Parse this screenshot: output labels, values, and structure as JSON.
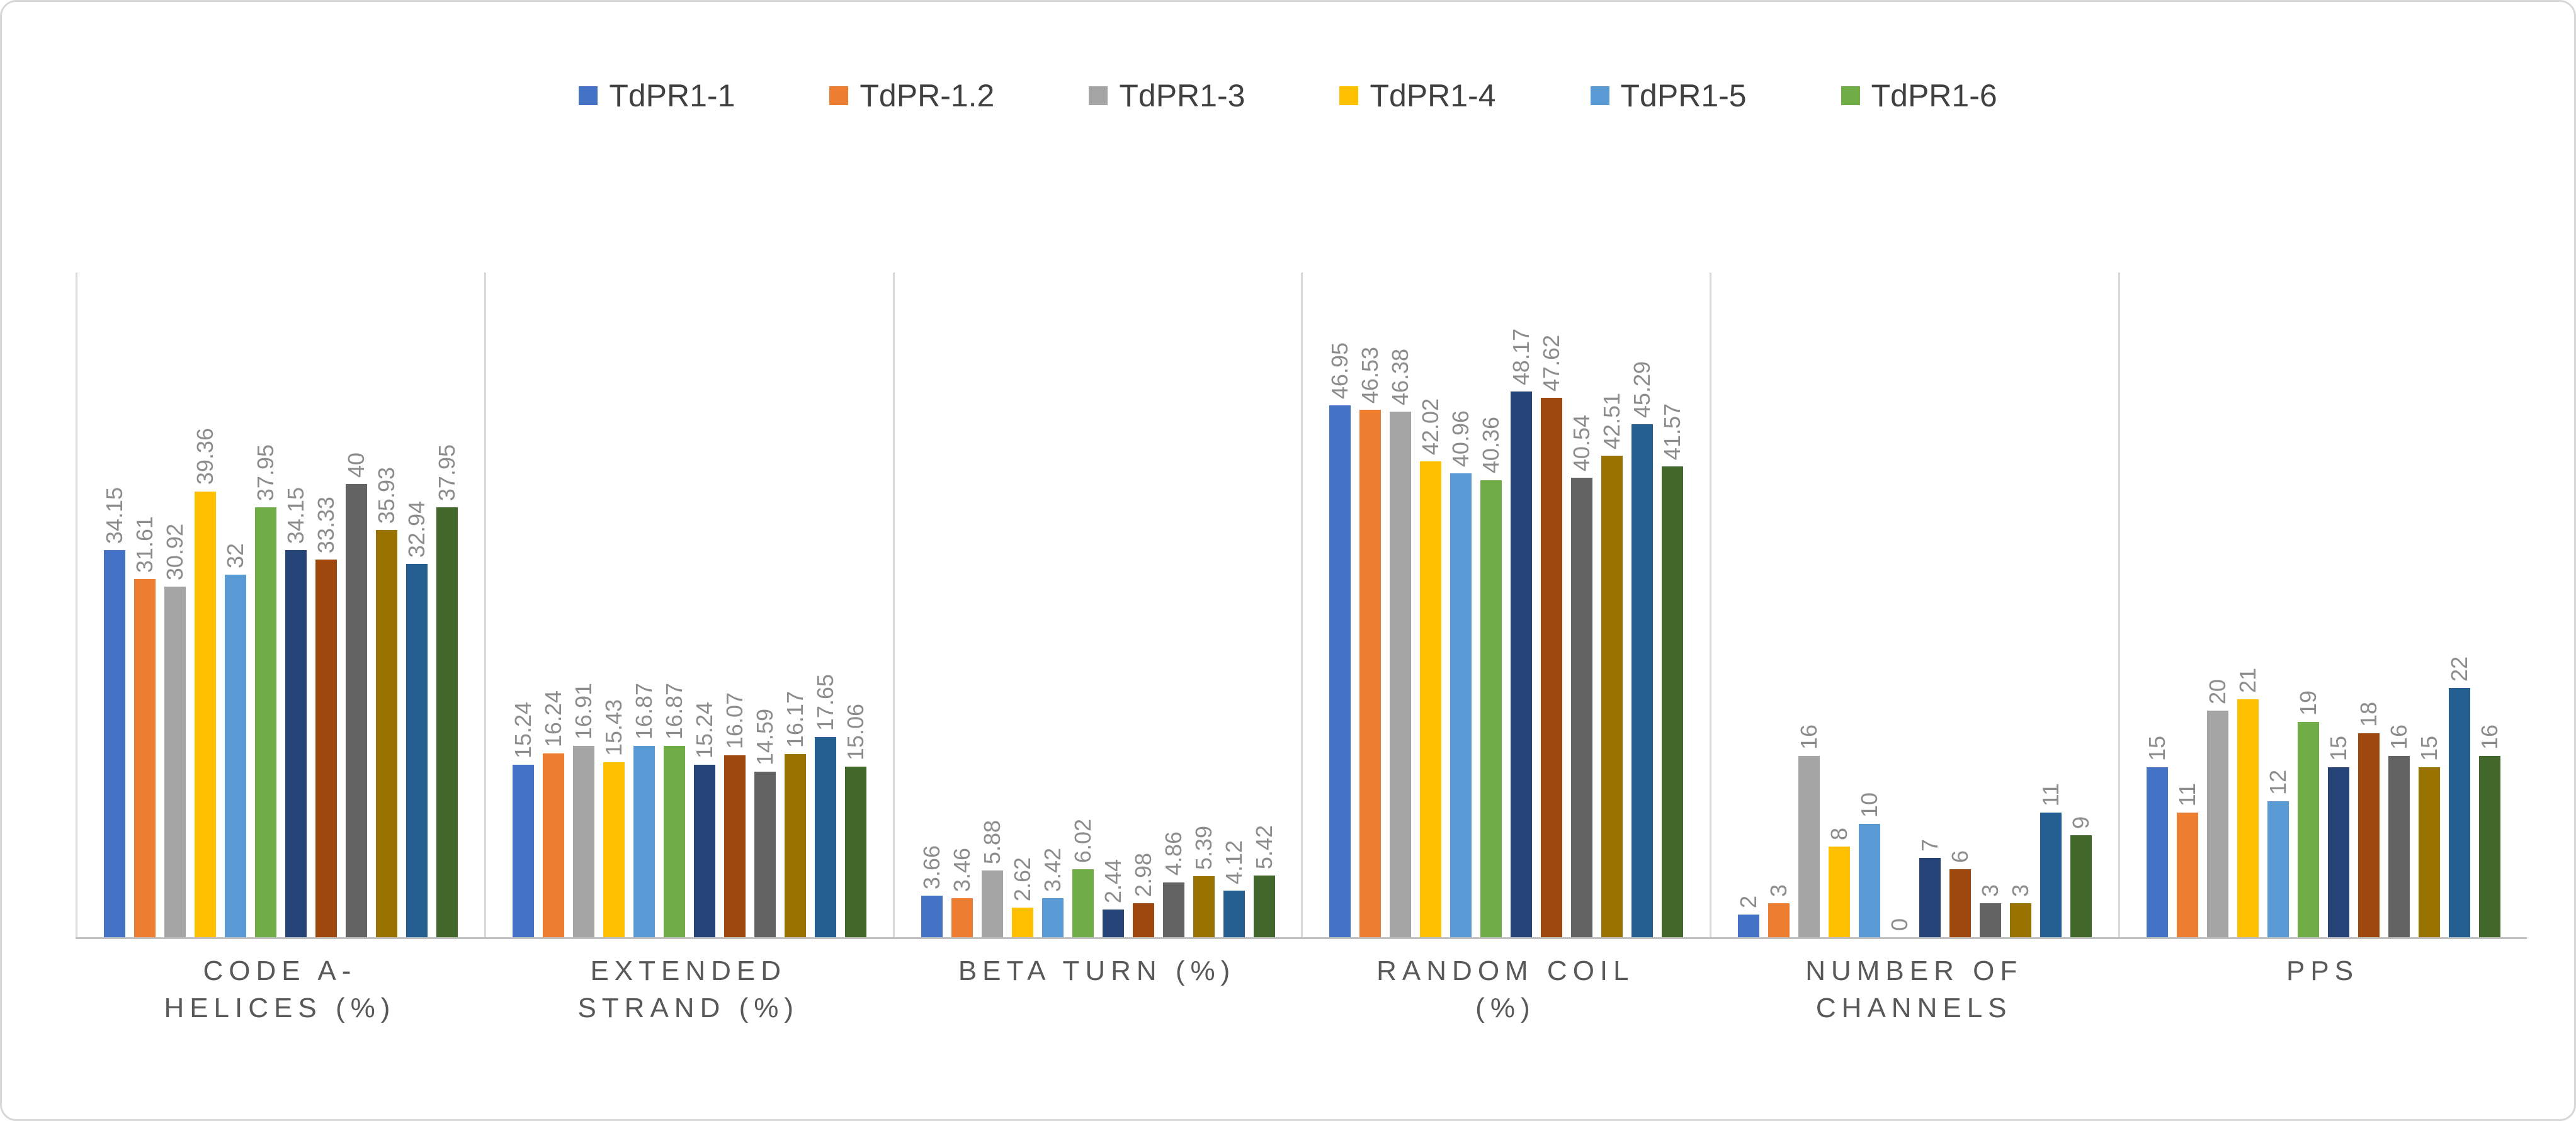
{
  "chart_data": {
    "type": "bar",
    "legend_position": "top",
    "value_axis": {
      "min": 0,
      "max": 50,
      "labels_visible": false
    },
    "data_labels": {
      "visible": true,
      "rotation": "vertical",
      "color": "#8c8c8c"
    },
    "categories": [
      {
        "label": "CODE A-HELICES (%)",
        "lines": [
          "CODE A-",
          "HELICES (%)"
        ]
      },
      {
        "label": "EXTENDED STRAND (%)",
        "lines": [
          "EXTENDED",
          "STRAND (%)"
        ]
      },
      {
        "label": "BETA TURN (%)",
        "lines": [
          "BETA TURN (%)"
        ]
      },
      {
        "label": "RANDOM COIL (%)",
        "lines": [
          "RANDOM COIL",
          "(%)"
        ]
      },
      {
        "label": "NUMBER OF CHANNELS",
        "lines": [
          "NUMBER OF",
          "CHANNELS"
        ]
      },
      {
        "label": "PPS",
        "lines": [
          "PPS"
        ]
      }
    ],
    "series": [
      {
        "name": "TdPR1-1",
        "in_legend": true,
        "color": "#4472C4",
        "values": [
          34.15,
          15.24,
          3.66,
          46.95,
          2,
          15
        ]
      },
      {
        "name": "TdPR-1.2",
        "in_legend": true,
        "color": "#ED7D31",
        "values": [
          31.61,
          16.24,
          3.46,
          46.53,
          3,
          11
        ]
      },
      {
        "name": "TdPR1-3",
        "in_legend": true,
        "color": "#A5A5A5",
        "values": [
          30.92,
          16.91,
          5.88,
          46.38,
          16,
          20
        ]
      },
      {
        "name": "TdPR1-4",
        "in_legend": true,
        "color": "#FFC000",
        "values": [
          39.36,
          15.43,
          2.62,
          42.02,
          8,
          21
        ]
      },
      {
        "name": "TdPR1-5",
        "in_legend": true,
        "color": "#5B9BD5",
        "values": [
          32,
          16.87,
          3.42,
          40.96,
          10,
          12
        ]
      },
      {
        "name": "TdPR1-6",
        "in_legend": true,
        "color": "#70AD47",
        "values": [
          37.95,
          16.87,
          6.02,
          40.36,
          0,
          19
        ]
      },
      {
        "name": "",
        "in_legend": false,
        "color": "#264478",
        "values": [
          34.15,
          15.24,
          2.44,
          48.17,
          7,
          15
        ]
      },
      {
        "name": "",
        "in_legend": false,
        "color": "#9E480E",
        "values": [
          33.33,
          16.07,
          2.98,
          47.62,
          6,
          18
        ]
      },
      {
        "name": "",
        "in_legend": false,
        "color": "#636363",
        "values": [
          40,
          14.59,
          4.86,
          40.54,
          3,
          16
        ]
      },
      {
        "name": "",
        "in_legend": false,
        "color": "#997300",
        "values": [
          35.93,
          16.17,
          5.39,
          42.51,
          3,
          15
        ]
      },
      {
        "name": "",
        "in_legend": false,
        "color": "#255E91",
        "values": [
          32.94,
          17.65,
          4.12,
          45.29,
          11,
          22
        ]
      },
      {
        "name": "",
        "in_legend": false,
        "color": "#43682B",
        "values": [
          37.95,
          15.06,
          5.42,
          41.57,
          9,
          16
        ]
      }
    ]
  },
  "styles": {
    "frame_border": "#d8d8d8",
    "gridline": "#d9d9d9",
    "baseline": "#bfbfbf",
    "legend_text": "#404040",
    "category_text": "#595959",
    "data_label_text": "#8c8c8c"
  }
}
